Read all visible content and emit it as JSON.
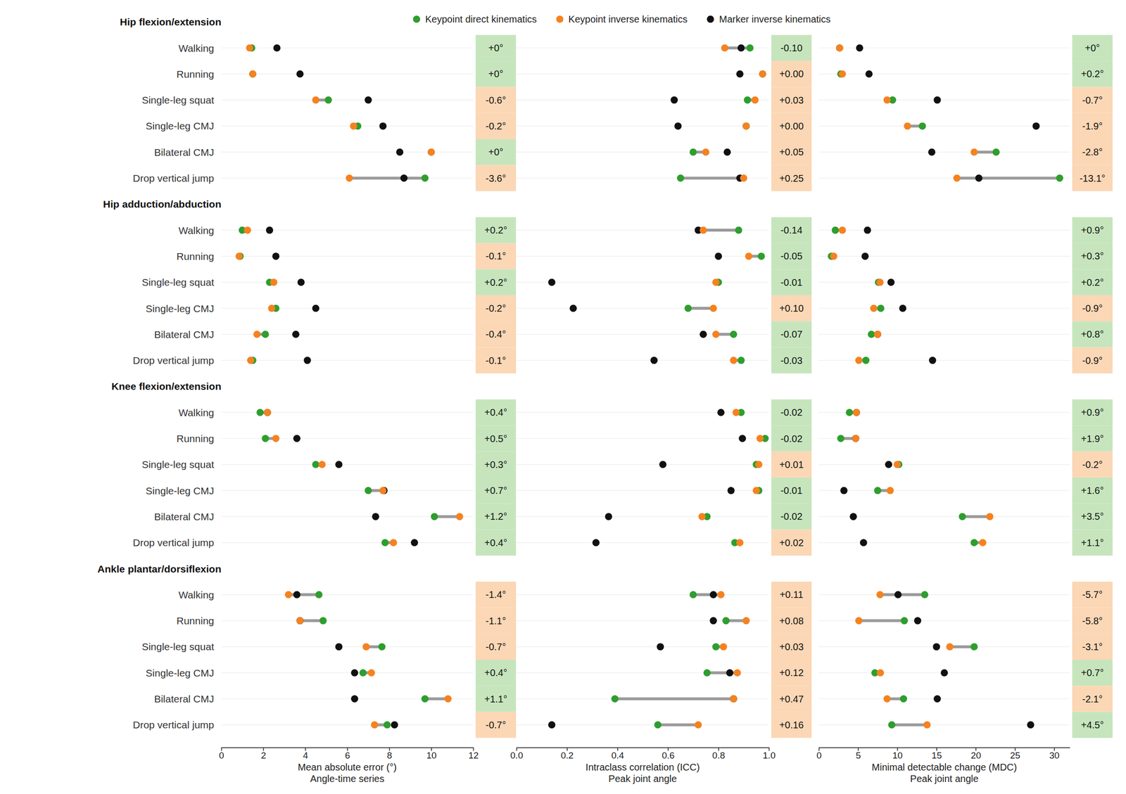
{
  "chart_data": {
    "type": "dot",
    "legend": "top",
    "series": [
      {
        "name": "Keypoint direct kinematics",
        "color": "#2e9e2e"
      },
      {
        "name": "Keypoint inverse kinematics",
        "color": "#f58220"
      },
      {
        "name": "Marker inverse kinematics",
        "color": "#111111"
      }
    ],
    "groups": [
      "Hip flexion/extension",
      "Hip adduction/abduction",
      "Knee flexion/extension",
      "Ankle plantar/dorsiflexion"
    ],
    "categories": [
      "Walking",
      "Running",
      "Single-leg squat",
      "Single-leg CMJ",
      "Bilateral CMJ",
      "Drop vertical jump"
    ],
    "panels": [
      {
        "xlabel": [
          "Mean absolute error (°)",
          "Angle-time series"
        ],
        "xlim": [
          0,
          12
        ],
        "xticks": [
          0,
          2,
          4,
          6,
          8,
          10,
          12
        ],
        "values": [
          [
            1.45,
            1.5,
            5.1,
            6.5,
            10.0,
            9.7,
            1.0,
            0.9,
            2.3,
            2.6,
            2.1,
            1.5,
            1.85,
            2.1,
            4.5,
            7.0,
            10.15,
            7.8,
            4.65,
            4.85,
            7.65,
            6.75,
            9.7,
            7.9
          ],
          [
            1.35,
            1.5,
            4.5,
            6.3,
            10.0,
            6.1,
            1.25,
            0.85,
            2.5,
            2.4,
            1.7,
            1.4,
            2.2,
            2.6,
            4.8,
            7.7,
            11.35,
            8.2,
            3.2,
            3.75,
            6.9,
            7.15,
            10.8,
            7.3
          ],
          [
            2.65,
            3.75,
            7.0,
            7.7,
            8.5,
            8.7,
            2.3,
            2.6,
            3.8,
            4.5,
            3.55,
            4.1,
            2.2,
            3.6,
            5.6,
            7.75,
            7.35,
            9.2,
            3.6,
            3.75,
            5.6,
            6.35,
            6.35,
            8.25
          ]
        ],
        "differences": {
          "values": [
            0,
            0,
            -0.6,
            -0.2,
            0,
            -3.6,
            0.2,
            -0.1,
            0.2,
            -0.2,
            -0.4,
            -0.1,
            0.4,
            0.5,
            0.3,
            0.7,
            1.2,
            0.4,
            -1.4,
            -1.1,
            -0.7,
            0.4,
            1.1,
            -0.7
          ],
          "value_labels": [
            "+0°",
            "+0°",
            "-0.6°",
            "-0.2°",
            "+0°",
            "-3.6°",
            "+0.2°",
            "-0.1°",
            "+0.2°",
            "-0.2°",
            "-0.4°",
            "-0.1°",
            "+0.4°",
            "+0.5°",
            "+0.3°",
            "+0.7°",
            "+1.2°",
            "+0.4°",
            "-1.4°",
            "-1.1°",
            "-0.7°",
            "+0.4°",
            "+1.1°",
            "-0.7°"
          ],
          "colors": [
            "#c6e5bd",
            "#c6e5bd",
            "#fbd7b5",
            "#fbd7b5",
            "#c6e5bd",
            "#fbd7b5",
            "#c6e5bd",
            "#fbd7b5",
            "#c6e5bd",
            "#fbd7b5",
            "#fbd7b5",
            "#fbd7b5",
            "#c6e5bd",
            "#c6e5bd",
            "#c6e5bd",
            "#c6e5bd",
            "#c6e5bd",
            "#c6e5bd",
            "#fbd7b5",
            "#fbd7b5",
            "#fbd7b5",
            "#c6e5bd",
            "#c6e5bd",
            "#fbd7b5"
          ]
        }
      },
      {
        "xlabel": [
          "Intraclass correlation (ICC)",
          "Peak joint angle"
        ],
        "xlim": [
          0,
          1
        ],
        "xticks": [
          {
            "value": 0,
            "label": "0.0"
          },
          0.2,
          0.4,
          0.6,
          0.8,
          {
            "value": 1,
            "label": "1.0"
          }
        ],
        "values": [
          [
            0.925,
            0.975,
            0.915,
            0.91,
            0.7,
            0.65,
            0.88,
            0.97,
            0.8,
            0.68,
            0.86,
            0.89,
            0.89,
            0.985,
            0.95,
            0.96,
            0.755,
            0.865,
            0.7,
            0.83,
            0.79,
            0.755,
            0.39,
            0.56
          ],
          [
            0.825,
            0.975,
            0.945,
            0.91,
            0.75,
            0.9,
            0.74,
            0.92,
            0.79,
            0.78,
            0.79,
            0.86,
            0.87,
            0.965,
            0.96,
            0.95,
            0.735,
            0.885,
            0.81,
            0.91,
            0.82,
            0.875,
            0.86,
            0.72
          ],
          [
            0.89,
            0.885,
            0.625,
            0.64,
            0.835,
            0.885,
            0.72,
            0.8,
            0.14,
            0.225,
            0.74,
            0.545,
            0.81,
            0.895,
            0.58,
            0.85,
            0.365,
            0.315,
            0.78,
            0.78,
            0.57,
            0.845,
            0.86,
            0.14
          ]
        ],
        "differences": {
          "values": [
            -0.1,
            0.0,
            0.03,
            0.0,
            0.05,
            0.25,
            -0.14,
            -0.05,
            -0.01,
            0.1,
            -0.07,
            -0.03,
            -0.02,
            -0.02,
            0.01,
            -0.01,
            -0.02,
            0.02,
            0.11,
            0.08,
            0.03,
            0.12,
            0.47,
            0.16
          ],
          "value_labels": [
            "-0.10",
            "+0.00",
            "+0.03",
            "+0.00",
            "+0.05",
            "+0.25",
            "-0.14",
            "-0.05",
            "-0.01",
            "+0.10",
            "-0.07",
            "-0.03",
            "-0.02",
            "-0.02",
            "+0.01",
            "-0.01",
            "-0.02",
            "+0.02",
            "+0.11",
            "+0.08",
            "+0.03",
            "+0.12",
            "+0.47",
            "+0.16"
          ],
          "colors": [
            "#c6e5bd",
            "#fbd7b5",
            "#fbd7b5",
            "#fbd7b5",
            "#fbd7b5",
            "#fbd7b5",
            "#c6e5bd",
            "#c6e5bd",
            "#c6e5bd",
            "#fbd7b5",
            "#c6e5bd",
            "#c6e5bd",
            "#c6e5bd",
            "#c6e5bd",
            "#fbd7b5",
            "#c6e5bd",
            "#c6e5bd",
            "#fbd7b5",
            "#fbd7b5",
            "#fbd7b5",
            "#fbd7b5",
            "#fbd7b5",
            "#fbd7b5",
            "#fbd7b5"
          ]
        }
      },
      {
        "xlabel": [
          "Minimal detectable change (MDC)",
          "Peak joint angle"
        ],
        "xlim": [
          0,
          32
        ],
        "xticks": [
          0,
          5,
          10,
          15,
          20,
          25,
          30
        ],
        "values": [
          [
            2.65,
            2.8,
            9.4,
            13.2,
            22.6,
            30.7,
            2.1,
            1.6,
            7.6,
            7.9,
            6.7,
            6.0,
            3.9,
            2.8,
            10.2,
            7.5,
            18.3,
            19.8,
            13.5,
            10.9,
            19.8,
            7.15,
            10.8,
            9.3
          ],
          [
            2.65,
            3.0,
            8.7,
            11.3,
            19.8,
            17.6,
            3.0,
            1.9,
            7.8,
            7.0,
            7.5,
            5.1,
            4.8,
            4.7,
            10.0,
            9.1,
            21.8,
            20.9,
            7.8,
            5.1,
            16.7,
            7.85,
            8.7,
            13.8
          ],
          [
            5.2,
            6.4,
            15.1,
            27.7,
            14.4,
            20.4,
            6.2,
            5.9,
            9.2,
            10.7,
            7.5,
            14.5,
            4.8,
            4.7,
            8.9,
            3.2,
            4.4,
            5.7,
            10.1,
            12.6,
            15.0,
            16.0,
            15.1,
            27.0
          ]
        ],
        "differences": {
          "values": [
            0,
            0.2,
            -0.7,
            -1.9,
            -2.8,
            -13.1,
            0.9,
            0.3,
            0.2,
            -0.9,
            0.8,
            -0.9,
            0.9,
            1.9,
            -0.2,
            1.6,
            3.5,
            1.1,
            -5.7,
            -5.8,
            -3.1,
            0.7,
            -2.1,
            4.5
          ],
          "value_labels": [
            "+0°",
            "+0.2°",
            "-0.7°",
            "-1.9°",
            "-2.8°",
            "-13.1°",
            "+0.9°",
            "+0.3°",
            "+0.2°",
            "-0.9°",
            "+0.8°",
            "-0.9°",
            "+0.9°",
            "+1.9°",
            "-0.2°",
            "+1.6°",
            "+3.5°",
            "+1.1°",
            "-5.7°",
            "-5.8°",
            "-3.1°",
            "+0.7°",
            "-2.1°",
            "+4.5°"
          ],
          "colors": [
            "#c6e5bd",
            "#c6e5bd",
            "#fbd7b5",
            "#fbd7b5",
            "#fbd7b5",
            "#fbd7b5",
            "#c6e5bd",
            "#c6e5bd",
            "#c6e5bd",
            "#fbd7b5",
            "#c6e5bd",
            "#fbd7b5",
            "#c6e5bd",
            "#c6e5bd",
            "#fbd7b5",
            "#c6e5bd",
            "#c6e5bd",
            "#c6e5bd",
            "#fbd7b5",
            "#fbd7b5",
            "#fbd7b5",
            "#c6e5bd",
            "#fbd7b5",
            "#c6e5bd"
          ]
        }
      }
    ]
  }
}
